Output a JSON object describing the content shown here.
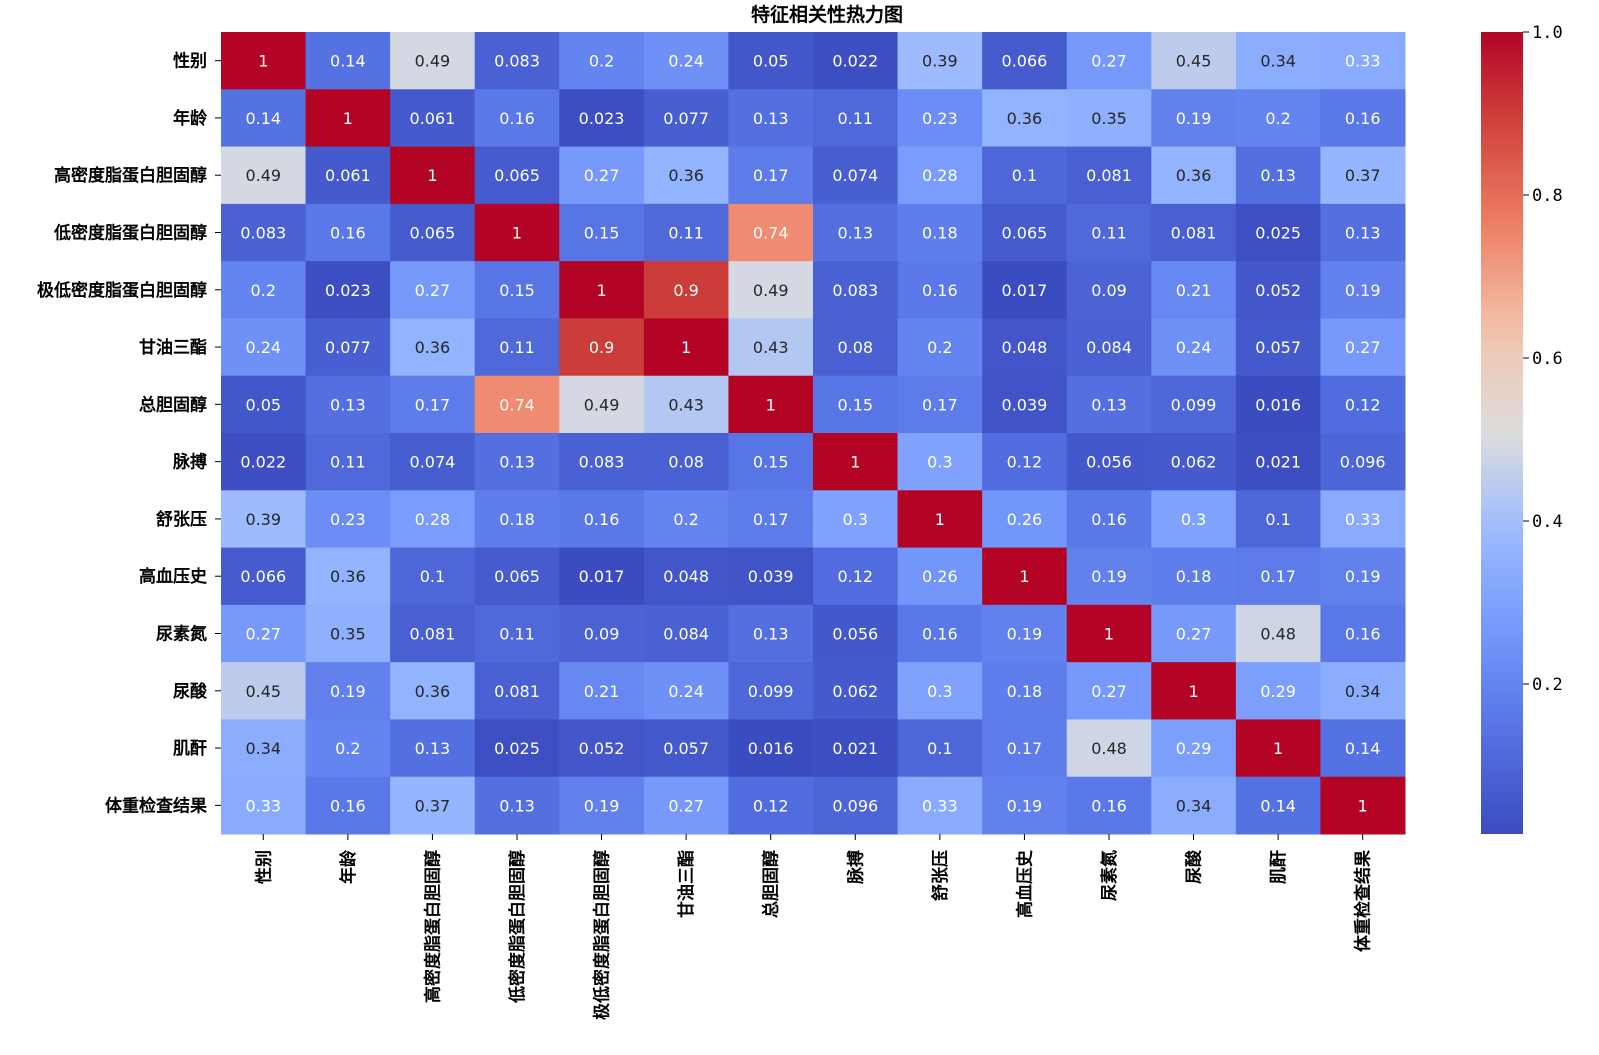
{
  "chart_data": {
    "type": "heatmap",
    "title": "特征相关性热力图",
    "labels": [
      "性别",
      "年龄",
      "高密度脂蛋白胆固醇",
      "低密度脂蛋白胆固醇",
      "极低密度脂蛋白胆固醇",
      "甘油三酯",
      "总胆固醇",
      "脉搏",
      "舒张压",
      "高血压史",
      "尿素氮",
      "尿酸",
      "肌酐",
      "体重检查结果"
    ],
    "values": [
      [
        1,
        0.14,
        0.49,
        0.083,
        0.2,
        0.24,
        0.05,
        0.022,
        0.39,
        0.066,
        0.27,
        0.45,
        0.34,
        0.33
      ],
      [
        0.14,
        1,
        0.061,
        0.16,
        0.023,
        0.077,
        0.13,
        0.11,
        0.23,
        0.36,
        0.35,
        0.19,
        0.2,
        0.16
      ],
      [
        0.49,
        0.061,
        1,
        0.065,
        0.27,
        0.36,
        0.17,
        0.074,
        0.28,
        0.1,
        0.081,
        0.36,
        0.13,
        0.37
      ],
      [
        0.083,
        0.16,
        0.065,
        1,
        0.15,
        0.11,
        0.74,
        0.13,
        0.18,
        0.065,
        0.11,
        0.081,
        0.025,
        0.13
      ],
      [
        0.2,
        0.023,
        0.27,
        0.15,
        1,
        0.9,
        0.49,
        0.083,
        0.16,
        0.017,
        0.09,
        0.21,
        0.052,
        0.19
      ],
      [
        0.24,
        0.077,
        0.36,
        0.11,
        0.9,
        1,
        0.43,
        0.08,
        0.2,
        0.048,
        0.084,
        0.24,
        0.057,
        0.27
      ],
      [
        0.05,
        0.13,
        0.17,
        0.74,
        0.49,
        0.43,
        1,
        0.15,
        0.17,
        0.039,
        0.13,
        0.099,
        0.016,
        0.12
      ],
      [
        0.022,
        0.11,
        0.074,
        0.13,
        0.083,
        0.08,
        0.15,
        1,
        0.3,
        0.12,
        0.056,
        0.062,
        0.021,
        0.096
      ],
      [
        0.39,
        0.23,
        0.28,
        0.18,
        0.16,
        0.2,
        0.17,
        0.3,
        1,
        0.26,
        0.16,
        0.3,
        0.1,
        0.33
      ],
      [
        0.066,
        0.36,
        0.1,
        0.065,
        0.017,
        0.048,
        0.039,
        0.12,
        0.26,
        1,
        0.19,
        0.18,
        0.17,
        0.19
      ],
      [
        0.27,
        0.35,
        0.081,
        0.11,
        0.09,
        0.084,
        0.13,
        0.056,
        0.16,
        0.19,
        1,
        0.27,
        0.48,
        0.16
      ],
      [
        0.45,
        0.19,
        0.36,
        0.081,
        0.21,
        0.24,
        0.099,
        0.062,
        0.3,
        0.18,
        0.27,
        1,
        0.29,
        0.34
      ],
      [
        0.34,
        0.2,
        0.13,
        0.025,
        0.052,
        0.057,
        0.016,
        0.021,
        0.1,
        0.17,
        0.48,
        0.29,
        1,
        0.14
      ],
      [
        0.33,
        0.16,
        0.37,
        0.13,
        0.19,
        0.27,
        0.12,
        0.096,
        0.33,
        0.19,
        0.16,
        0.34,
        0.14,
        1
      ]
    ],
    "colormap": "coolwarm",
    "vmin": 0.016,
    "vmax": 1.0,
    "colorbar_ticks": [
      "0.2",
      "0.4",
      "0.6",
      "0.8",
      "1.0"
    ],
    "colorbar_tick_values": [
      0.2,
      0.4,
      0.6,
      0.8,
      1.0
    ],
    "colors": {
      "low": "#3b4cc0",
      "mid": "#dddddd",
      "high": "#b40426"
    }
  }
}
